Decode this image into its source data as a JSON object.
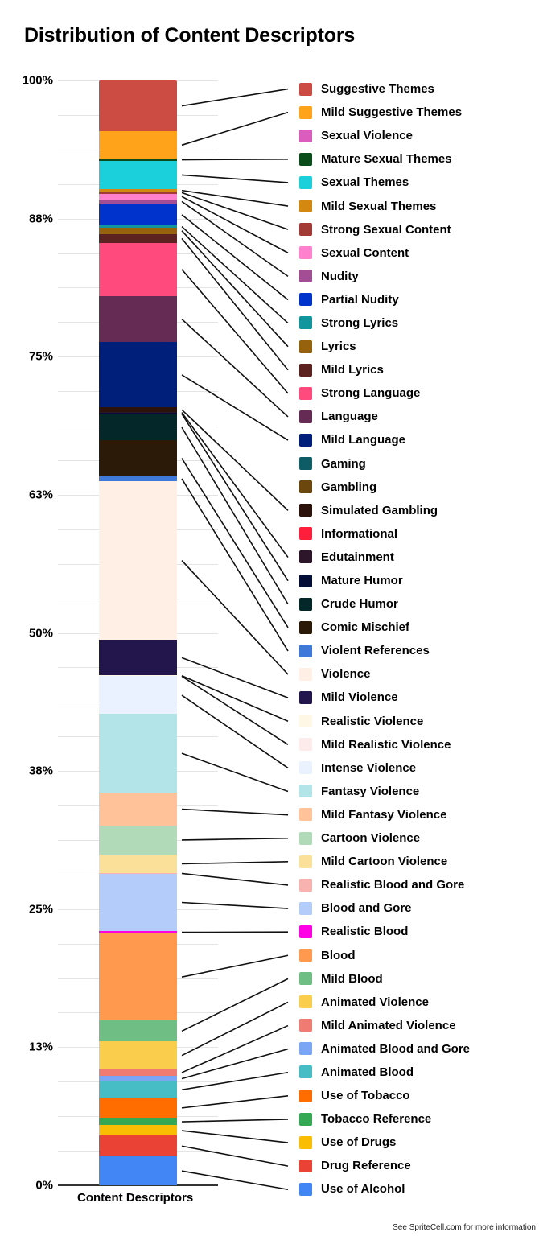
{
  "chart_data": {
    "type": "bar",
    "stacked": true,
    "normalized": true,
    "title": "Distribution of Content Descriptors",
    "xlabel": "Content Descriptors",
    "ylabel": "",
    "ylim": [
      0,
      100
    ],
    "yticks": [
      "100%",
      "88%",
      "75%",
      "63%",
      "50%",
      "38%",
      "25%",
      "13%",
      "0%"
    ],
    "grid": true,
    "legend_position": "right",
    "categories": [
      "Content Descriptors"
    ],
    "series": [
      {
        "name": "Suggestive Themes",
        "color": "#CC4B42",
        "value": 4.6
      },
      {
        "name": "Mild Suggestive Themes",
        "color": "#FFA31A",
        "value": 2.5
      },
      {
        "name": "Sexual Violence",
        "color": "#DC5CBD",
        "value": 0.0
      },
      {
        "name": "Mature Sexual Themes",
        "color": "#0B4D1A",
        "value": 0.15
      },
      {
        "name": "Sexual Themes",
        "color": "#1BCFDB",
        "value": 2.6
      },
      {
        "name": "Mild Sexual Themes",
        "color": "#D5880F",
        "value": 0.2
      },
      {
        "name": "Strong Sexual Content",
        "color": "#A23B35",
        "value": 0.2
      },
      {
        "name": "Sexual Content",
        "color": "#FF80CC",
        "value": 0.5
      },
      {
        "name": "Nudity",
        "color": "#A34D94",
        "value": 0.4
      },
      {
        "name": "Partial Nudity",
        "color": "#0033CC",
        "value": 2.0
      },
      {
        "name": "Strong Lyrics",
        "color": "#12969E",
        "value": 0.15
      },
      {
        "name": "Lyrics",
        "color": "#96620D",
        "value": 0.6
      },
      {
        "name": "Mild Lyrics",
        "color": "#5C2220",
        "value": 0.8
      },
      {
        "name": "Strong Language",
        "color": "#FF4A7D",
        "value": 4.8
      },
      {
        "name": "Language",
        "color": "#662B55",
        "value": 4.2
      },
      {
        "name": "Mild Language",
        "color": "#001F7A",
        "value": 5.9
      },
      {
        "name": "Gaming",
        "color": "#0E5C64",
        "value": 0.0
      },
      {
        "name": "Gambling",
        "color": "#6B460D",
        "value": 0.0
      },
      {
        "name": "Simulated Gambling",
        "color": "#2B120B",
        "value": 0.4
      },
      {
        "name": "Informational",
        "color": "#FF1F3C",
        "value": 0.0
      },
      {
        "name": "Edutainment",
        "color": "#2D162A",
        "value": 0.1
      },
      {
        "name": "Mature Humor",
        "color": "#050E36",
        "value": 0.15
      },
      {
        "name": "Crude Humor",
        "color": "#04282A",
        "value": 2.3
      },
      {
        "name": "Comic Mischief",
        "color": "#2A1A07",
        "value": 3.3
      },
      {
        "name": "Violent References",
        "color": "#3F7ADB",
        "value": 0.4
      },
      {
        "name": "Violence",
        "color": "#FFEFE5",
        "value": 14.4
      },
      {
        "name": "Mild Violence",
        "color": "#22164D",
        "value": 3.2
      },
      {
        "name": "Realistic Violence",
        "color": "#FFF7E6",
        "value": 0.05
      },
      {
        "name": "Mild Realistic Violence",
        "color": "#FDEBEB",
        "value": 0.05
      },
      {
        "name": "Intense Violence",
        "color": "#EBF2FF",
        "value": 3.4
      },
      {
        "name": "Fantasy Violence",
        "color": "#B3E5E8",
        "value": 7.1
      },
      {
        "name": "Mild Fantasy Violence",
        "color": "#FFC299",
        "value": 3.0
      },
      {
        "name": "Cartoon Violence",
        "color": "#B1DBB8",
        "value": 2.6
      },
      {
        "name": "Mild Cartoon Violence",
        "color": "#FBE099",
        "value": 1.7
      },
      {
        "name": "Realistic Blood and Gore",
        "color": "#F8B3B0",
        "value": 0.05
      },
      {
        "name": "Blood and Gore",
        "color": "#B4CCFA",
        "value": 5.2
      },
      {
        "name": "Realistic Blood",
        "color": "#FF00E6",
        "value": 0.2
      },
      {
        "name": "Blood",
        "color": "#FF994D",
        "value": 7.9
      },
      {
        "name": "Mild Blood",
        "color": "#6FBF85",
        "value": 1.9
      },
      {
        "name": "Animated Violence",
        "color": "#FACD4D",
        "value": 2.5
      },
      {
        "name": "Mild Animated Violence",
        "color": "#F07B72",
        "value": 0.6
      },
      {
        "name": "Animated Blood and Gore",
        "color": "#7BA6F5",
        "value": 0.5
      },
      {
        "name": "Animated Blood",
        "color": "#46BCC4",
        "value": 1.5
      },
      {
        "name": "Use of Tobacco",
        "color": "#FF6D00",
        "value": 1.8
      },
      {
        "name": "Tobacco Reference",
        "color": "#34A853",
        "value": 0.7
      },
      {
        "name": "Use of Drugs",
        "color": "#FBBC04",
        "value": 0.9
      },
      {
        "name": "Drug Reference",
        "color": "#EA4335",
        "value": 1.9
      },
      {
        "name": "Use of Alcohol",
        "color": "#4285F4",
        "value": 2.6
      }
    ]
  },
  "footer": "See SpriteCell.com for more information"
}
